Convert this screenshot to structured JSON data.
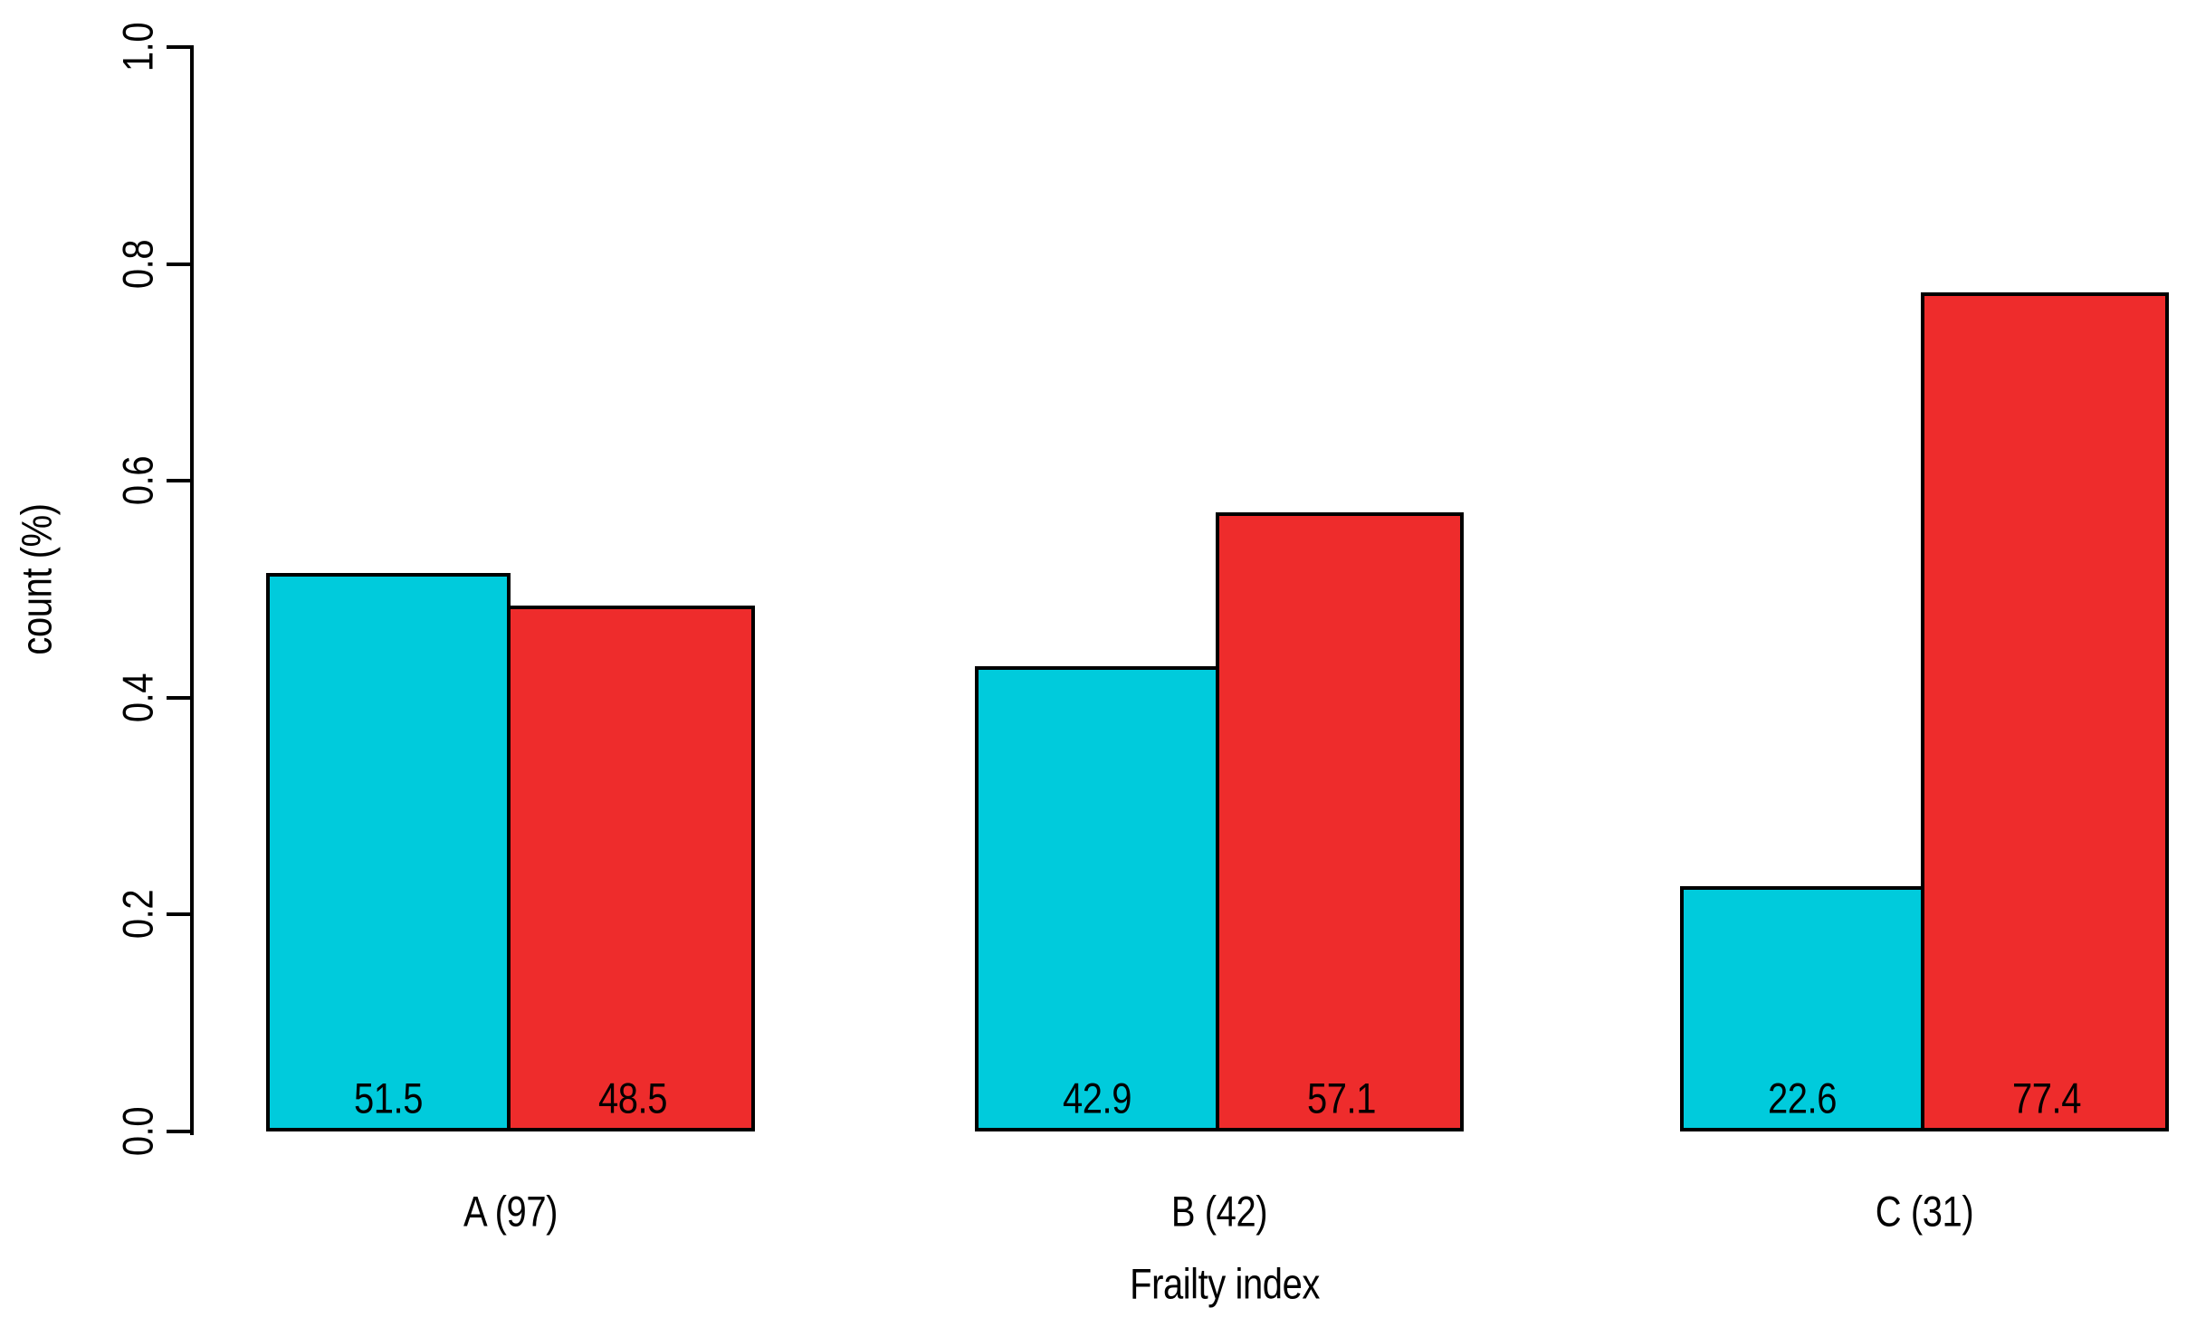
{
  "figure": {
    "background": "#ffffff",
    "text_color": "#000000",
    "axis_color": "#000000"
  },
  "chart_data": {
    "type": "bar",
    "title": "",
    "xlabel": "Frailty index",
    "ylabel": "count (%)",
    "categories": [
      "A (97)",
      "B (42)",
      "C (31)"
    ],
    "series": [
      {
        "name": "cyan",
        "color": "#00CBDC",
        "values": [
          51.5,
          42.9,
          22.6
        ]
      },
      {
        "name": "red",
        "color": "#EE2C2C",
        "values": [
          48.5,
          57.1,
          77.4
        ]
      }
    ],
    "bar_value_labels": [
      [
        "51.5",
        "48.5"
      ],
      [
        "42.9",
        "57.1"
      ],
      [
        "22.6",
        "77.4"
      ]
    ],
    "yticks": [
      "0.0",
      "0.2",
      "0.4",
      "0.6",
      "0.8",
      "1.0"
    ],
    "ylim": [
      0,
      1
    ],
    "bar_height_rule": "bar height fraction = value / 100",
    "legend_position": "none",
    "grid": "off"
  }
}
